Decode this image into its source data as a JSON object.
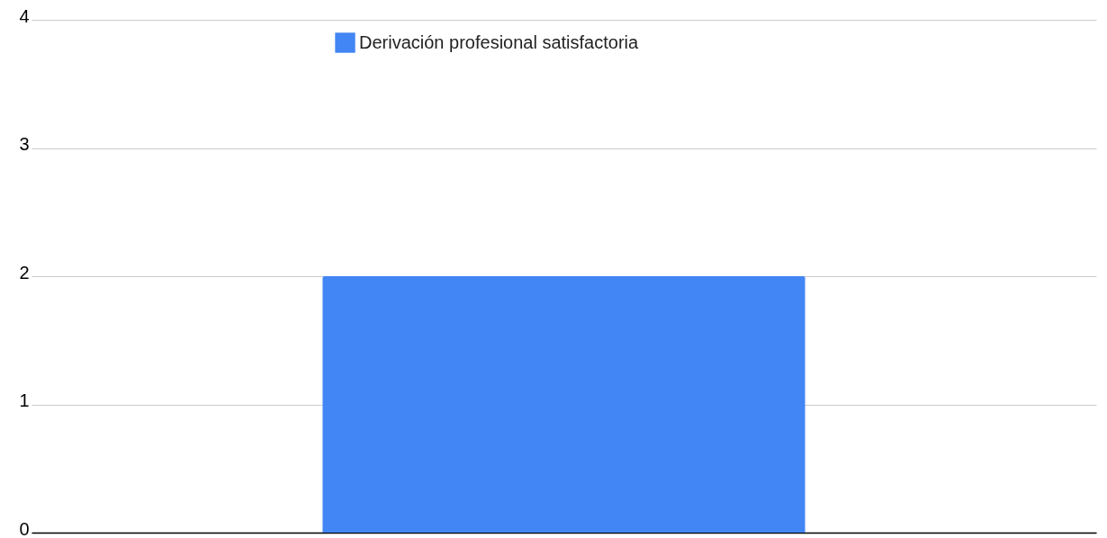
{
  "chart_data": {
    "type": "bar",
    "categories": [
      null
    ],
    "series": [
      {
        "name": "Derivación profesional satisfactoria",
        "color": "#4285f4",
        "values": [
          2
        ]
      }
    ],
    "ylim": [
      0,
      4
    ],
    "yticks": [
      0,
      1,
      2,
      3,
      4
    ],
    "grid": "y",
    "legend": "top",
    "tick_labels": "y"
  }
}
